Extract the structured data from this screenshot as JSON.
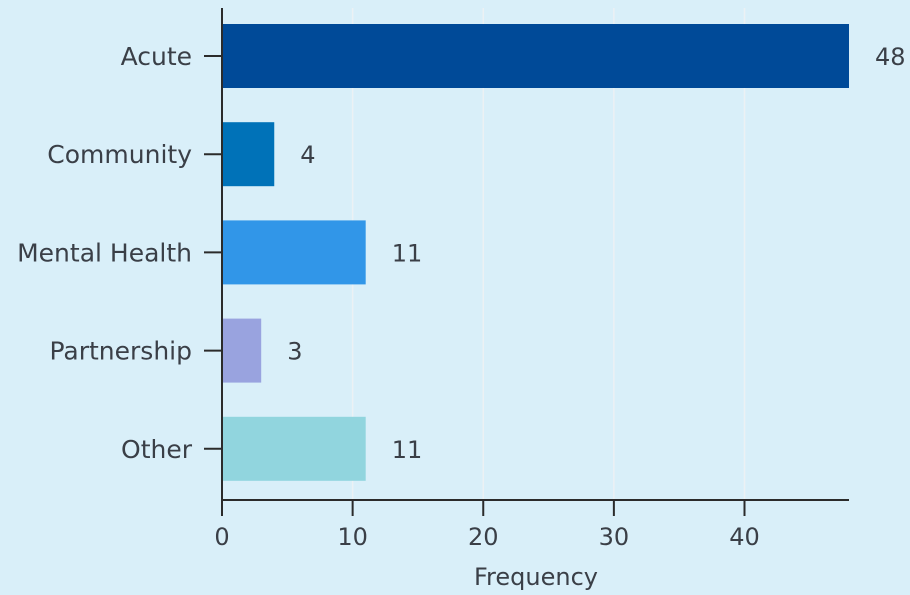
{
  "chart_data": {
    "type": "bar",
    "orientation": "horizontal",
    "categories": [
      "Acute",
      "Community",
      "Mental Health",
      "Partnership",
      "Other"
    ],
    "values": [
      48,
      4,
      11,
      3,
      11
    ],
    "colors": [
      "#004a98",
      "#0072b8",
      "#3196e8",
      "#99a3df",
      "#91d5de"
    ],
    "xlabel": "Frequency",
    "ylabel": "",
    "title": "",
    "xlim": [
      0,
      48
    ],
    "xticks": [
      "0",
      "10",
      "20",
      "30",
      "40"
    ],
    "grid": "vertical",
    "legend": "none"
  }
}
